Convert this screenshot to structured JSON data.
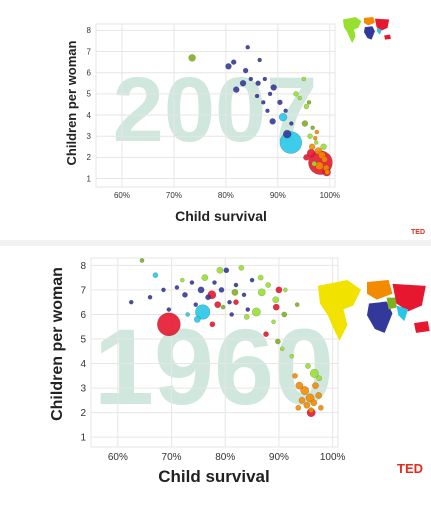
{
  "branding": {
    "logo_text": "TED"
  },
  "colors": {
    "year_watermark": "#cfe7dd",
    "grid": "#e6e6e6",
    "axis_text": "#222222",
    "ted_red": "#e62b1e",
    "regions": {
      "africa": "#33399b",
      "south_asia": "#28c6e8",
      "east_asia_pacific": "#e6172e",
      "americas": "#98e030",
      "europe_central_asia": "#f28b00",
      "middle_east": "#7fb020"
    }
  },
  "chart_data": [
    {
      "type": "scatter",
      "panel": "top",
      "year_label": "2007",
      "title": "",
      "xlabel": "Child survival",
      "ylabel": "Children per woman",
      "x_ticks": [
        "60%",
        "70%",
        "80%",
        "90%",
        "100%"
      ],
      "y_ticks": [
        "1",
        "2",
        "3",
        "4",
        "5",
        "6",
        "7",
        "8"
      ],
      "xlim": [
        55,
        101
      ],
      "ylim": [
        0.6,
        8.3
      ],
      "grid": true,
      "legend": "map-top-right",
      "points": [
        {
          "x": 73.5,
          "y": 6.7,
          "r": 3.5,
          "region": "middle_east"
        },
        {
          "x": 84.2,
          "y": 7.2,
          "r": 2,
          "region": "africa"
        },
        {
          "x": 80.5,
          "y": 6.3,
          "r": 3,
          "region": "africa"
        },
        {
          "x": 81.5,
          "y": 6.5,
          "r": 2.5,
          "region": "africa"
        },
        {
          "x": 83.8,
          "y": 6.1,
          "r": 2.5,
          "region": "africa"
        },
        {
          "x": 86.5,
          "y": 6.6,
          "r": 2,
          "region": "africa"
        },
        {
          "x": 86.2,
          "y": 5.5,
          "r": 2.5,
          "region": "africa"
        },
        {
          "x": 84.8,
          "y": 5.7,
          "r": 2,
          "region": "africa"
        },
        {
          "x": 82.0,
          "y": 5.2,
          "r": 3,
          "region": "africa"
        },
        {
          "x": 83.3,
          "y": 5.5,
          "r": 3,
          "region": "africa"
        },
        {
          "x": 87.5,
          "y": 5.7,
          "r": 2,
          "region": "africa"
        },
        {
          "x": 88.5,
          "y": 5.0,
          "r": 2,
          "region": "africa"
        },
        {
          "x": 89.2,
          "y": 5.3,
          "r": 3,
          "region": "africa"
        },
        {
          "x": 86.0,
          "y": 4.9,
          "r": 2,
          "region": "africa"
        },
        {
          "x": 87.2,
          "y": 4.6,
          "r": 2,
          "region": "africa"
        },
        {
          "x": 90.4,
          "y": 4.6,
          "r": 2.5,
          "region": "africa"
        },
        {
          "x": 88.0,
          "y": 4.2,
          "r": 2,
          "region": "africa"
        },
        {
          "x": 91.5,
          "y": 4.2,
          "r": 2,
          "region": "africa"
        },
        {
          "x": 89.0,
          "y": 3.7,
          "r": 3,
          "region": "africa"
        },
        {
          "x": 92.6,
          "y": 3.6,
          "r": 2,
          "region": "africa"
        },
        {
          "x": 91.8,
          "y": 3.1,
          "r": 4,
          "region": "africa"
        },
        {
          "x": 91.0,
          "y": 3.9,
          "r": 4,
          "region": "south_asia"
        },
        {
          "x": 92.5,
          "y": 2.7,
          "r": 11,
          "region": "south_asia"
        },
        {
          "x": 93.5,
          "y": 5.0,
          "r": 2.5,
          "region": "americas"
        },
        {
          "x": 95.0,
          "y": 5.7,
          "r": 2,
          "region": "americas"
        },
        {
          "x": 94.2,
          "y": 4.8,
          "r": 2,
          "region": "americas"
        },
        {
          "x": 95.5,
          "y": 4.4,
          "r": 2.5,
          "region": "americas"
        },
        {
          "x": 96.0,
          "y": 4.6,
          "r": 2,
          "region": "middle_east"
        },
        {
          "x": 95.2,
          "y": 3.6,
          "r": 3,
          "region": "middle_east"
        },
        {
          "x": 96.7,
          "y": 3.4,
          "r": 2,
          "region": "middle_east"
        },
        {
          "x": 96.2,
          "y": 3.0,
          "r": 2.5,
          "region": "americas"
        },
        {
          "x": 97.4,
          "y": 2.7,
          "r": 2,
          "region": "americas"
        },
        {
          "x": 97.5,
          "y": 3.2,
          "r": 2,
          "region": "europe_central_asia"
        },
        {
          "x": 96.6,
          "y": 2.5,
          "r": 3,
          "region": "europe_central_asia"
        },
        {
          "x": 97.8,
          "y": 2.3,
          "r": 3.5,
          "region": "europe_central_asia"
        },
        {
          "x": 98.5,
          "y": 2.1,
          "r": 3.5,
          "region": "europe_central_asia"
        },
        {
          "x": 99.0,
          "y": 1.9,
          "r": 3,
          "region": "europe_central_asia"
        },
        {
          "x": 98.0,
          "y": 1.6,
          "r": 4,
          "region": "europe_central_asia"
        },
        {
          "x": 99.3,
          "y": 1.5,
          "r": 3,
          "region": "europe_central_asia"
        },
        {
          "x": 99.5,
          "y": 1.3,
          "r": 2.5,
          "region": "europe_central_asia"
        },
        {
          "x": 97.0,
          "y": 1.7,
          "r": 2.5,
          "region": "americas"
        },
        {
          "x": 98.8,
          "y": 2.5,
          "r": 3,
          "region": "americas"
        },
        {
          "x": 96.4,
          "y": 2.2,
          "r": 4,
          "region": "east_asia_pacific"
        },
        {
          "x": 95.5,
          "y": 2.0,
          "r": 3,
          "region": "east_asia_pacific"
        },
        {
          "x": 98.2,
          "y": 1.75,
          "r": 12,
          "region": "east_asia_pacific"
        },
        {
          "x": 99.4,
          "y": 1.3,
          "r": 4,
          "region": "east_asia_pacific"
        },
        {
          "x": 97.2,
          "y": 2.9,
          "r": 2,
          "region": "europe_central_asia"
        }
      ]
    },
    {
      "type": "scatter",
      "panel": "bottom",
      "year_label": "1960",
      "title": "",
      "xlabel": "Child survival",
      "ylabel": "Children per woman",
      "x_ticks": [
        "60%",
        "70%",
        "80%",
        "90%",
        "100%"
      ],
      "y_ticks": [
        "1",
        "2",
        "3",
        "4",
        "5",
        "6",
        "7",
        "8"
      ],
      "xlim": [
        55,
        101
      ],
      "ylim": [
        0.6,
        8.3
      ],
      "grid": true,
      "legend": "map-top-right",
      "points": [
        {
          "x": 64.5,
          "y": 8.2,
          "r": 2,
          "region": "middle_east"
        },
        {
          "x": 67.0,
          "y": 7.6,
          "r": 2.5,
          "region": "south_asia"
        },
        {
          "x": 68.5,
          "y": 7.0,
          "r": 2,
          "region": "africa"
        },
        {
          "x": 66.0,
          "y": 6.7,
          "r": 2,
          "region": "africa"
        },
        {
          "x": 62.5,
          "y": 6.5,
          "r": 2,
          "region": "africa"
        },
        {
          "x": 69.5,
          "y": 6.2,
          "r": 2,
          "region": "africa"
        },
        {
          "x": 71.0,
          "y": 7.1,
          "r": 2,
          "region": "africa"
        },
        {
          "x": 72.5,
          "y": 6.8,
          "r": 2.5,
          "region": "africa"
        },
        {
          "x": 73.8,
          "y": 7.3,
          "r": 2,
          "region": "africa"
        },
        {
          "x": 74.5,
          "y": 6.4,
          "r": 2,
          "region": "africa"
        },
        {
          "x": 75.5,
          "y": 7.0,
          "r": 3,
          "region": "africa"
        },
        {
          "x": 76.8,
          "y": 6.7,
          "r": 2.5,
          "region": "africa"
        },
        {
          "x": 78.0,
          "y": 7.3,
          "r": 2,
          "region": "africa"
        },
        {
          "x": 79.3,
          "y": 7.0,
          "r": 2.5,
          "region": "africa"
        },
        {
          "x": 80.2,
          "y": 7.8,
          "r": 2.5,
          "region": "africa"
        },
        {
          "x": 80.8,
          "y": 6.5,
          "r": 2,
          "region": "africa"
        },
        {
          "x": 82.0,
          "y": 7.2,
          "r": 2,
          "region": "africa"
        },
        {
          "x": 81.2,
          "y": 6.0,
          "r": 2,
          "region": "africa"
        },
        {
          "x": 83.5,
          "y": 6.8,
          "r": 2,
          "region": "africa"
        },
        {
          "x": 85.0,
          "y": 7.4,
          "r": 2,
          "region": "africa"
        },
        {
          "x": 84.2,
          "y": 6.2,
          "r": 2,
          "region": "africa"
        },
        {
          "x": 73.0,
          "y": 6.0,
          "r": 2,
          "region": "south_asia"
        },
        {
          "x": 69.5,
          "y": 5.6,
          "r": 11,
          "region": "east_asia_pacific"
        },
        {
          "x": 75.8,
          "y": 6.1,
          "r": 7,
          "region": "south_asia"
        },
        {
          "x": 74.8,
          "y": 5.8,
          "r": 3,
          "region": "south_asia"
        },
        {
          "x": 77.5,
          "y": 6.8,
          "r": 4,
          "region": "east_asia_pacific"
        },
        {
          "x": 78.6,
          "y": 6.4,
          "r": 3,
          "region": "east_asia_pacific"
        },
        {
          "x": 77.6,
          "y": 5.6,
          "r": 2.5,
          "region": "east_asia_pacific"
        },
        {
          "x": 76.2,
          "y": 7.5,
          "r": 3,
          "region": "americas"
        },
        {
          "x": 72.0,
          "y": 7.4,
          "r": 2,
          "region": "americas"
        },
        {
          "x": 79.0,
          "y": 7.8,
          "r": 3,
          "region": "americas"
        },
        {
          "x": 83.0,
          "y": 7.9,
          "r": 2.5,
          "region": "americas"
        },
        {
          "x": 84.0,
          "y": 5.9,
          "r": 2.5,
          "region": "americas"
        },
        {
          "x": 85.8,
          "y": 6.1,
          "r": 4,
          "region": "americas"
        },
        {
          "x": 86.8,
          "y": 6.9,
          "r": 3.5,
          "region": "americas"
        },
        {
          "x": 86.6,
          "y": 7.5,
          "r": 2.5,
          "region": "americas"
        },
        {
          "x": 88.0,
          "y": 7.2,
          "r": 2.5,
          "region": "americas"
        },
        {
          "x": 89.4,
          "y": 6.6,
          "r": 3,
          "region": "americas"
        },
        {
          "x": 89.0,
          "y": 5.7,
          "r": 2,
          "region": "americas"
        },
        {
          "x": 91.2,
          "y": 7.0,
          "r": 2,
          "region": "americas"
        },
        {
          "x": 90.6,
          "y": 4.6,
          "r": 2,
          "region": "americas"
        },
        {
          "x": 92.4,
          "y": 4.3,
          "r": 2,
          "region": "americas"
        },
        {
          "x": 87.6,
          "y": 5.2,
          "r": 2.5,
          "region": "east_asia_pacific"
        },
        {
          "x": 89.5,
          "y": 6.3,
          "r": 3,
          "region": "east_asia_pacific"
        },
        {
          "x": 90.0,
          "y": 7.0,
          "r": 3,
          "region": "east_asia_pacific"
        },
        {
          "x": 82.0,
          "y": 6.5,
          "r": 2.5,
          "region": "east_asia_pacific"
        },
        {
          "x": 79.6,
          "y": 6.3,
          "r": 2,
          "region": "middle_east"
        },
        {
          "x": 81.8,
          "y": 6.9,
          "r": 3,
          "region": "middle_east"
        },
        {
          "x": 91.0,
          "y": 6.0,
          "r": 2.5,
          "region": "middle_east"
        },
        {
          "x": 93.4,
          "y": 6.4,
          "r": 2,
          "region": "middle_east"
        },
        {
          "x": 89.8,
          "y": 4.9,
          "r": 2.5,
          "region": "middle_east"
        },
        {
          "x": 93.0,
          "y": 3.5,
          "r": 2.5,
          "region": "europe_central_asia"
        },
        {
          "x": 93.8,
          "y": 3.1,
          "r": 3.5,
          "region": "europe_central_asia"
        },
        {
          "x": 94.8,
          "y": 2.9,
          "r": 4,
          "region": "europe_central_asia"
        },
        {
          "x": 95.8,
          "y": 2.6,
          "r": 4,
          "region": "europe_central_asia"
        },
        {
          "x": 94.3,
          "y": 2.5,
          "r": 3,
          "region": "europe_central_asia"
        },
        {
          "x": 95.2,
          "y": 2.3,
          "r": 3,
          "region": "europe_central_asia"
        },
        {
          "x": 96.5,
          "y": 2.4,
          "r": 3,
          "region": "europe_central_asia"
        },
        {
          "x": 97.4,
          "y": 2.7,
          "r": 3,
          "region": "europe_central_asia"
        },
        {
          "x": 96.0,
          "y": 2.1,
          "r": 2.5,
          "region": "europe_central_asia"
        },
        {
          "x": 93.6,
          "y": 2.2,
          "r": 2.5,
          "region": "europe_central_asia"
        },
        {
          "x": 96.8,
          "y": 3.1,
          "r": 3,
          "region": "europe_central_asia"
        },
        {
          "x": 96.6,
          "y": 3.6,
          "r": 4,
          "region": "americas"
        },
        {
          "x": 97.5,
          "y": 3.4,
          "r": 2.5,
          "region": "americas"
        },
        {
          "x": 95.4,
          "y": 3.9,
          "r": 2.5,
          "region": "americas"
        },
        {
          "x": 96.0,
          "y": 2.0,
          "r": 4,
          "region": "east_asia_pacific"
        },
        {
          "x": 97.8,
          "y": 2.2,
          "r": 2.5,
          "region": "europe_central_asia"
        }
      ]
    }
  ]
}
